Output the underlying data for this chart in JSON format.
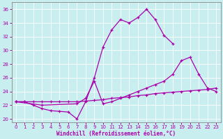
{
  "xlabel": "Windchill (Refroidissement éolien,°C)",
  "bg_color": "#c8eef0",
  "line_color": "#aa00aa",
  "xlim": [
    -0.5,
    23.5
  ],
  "ylim": [
    19.5,
    37.0
  ],
  "xticks": [
    0,
    1,
    2,
    3,
    4,
    5,
    6,
    7,
    8,
    9,
    10,
    11,
    12,
    13,
    14,
    15,
    16,
    17,
    18,
    19,
    20,
    21,
    22,
    23
  ],
  "yticks": [
    20,
    22,
    24,
    26,
    28,
    30,
    32,
    34,
    36
  ],
  "line1_x": [
    0,
    1,
    2,
    3,
    4,
    5,
    6,
    7,
    8,
    9,
    10,
    11,
    12,
    13,
    14,
    15,
    16,
    17,
    18
  ],
  "line1_y": [
    22.5,
    22.5,
    22.0,
    21.5,
    21.2,
    21.1,
    21.0,
    20.0,
    22.5,
    26.0,
    30.5,
    33.0,
    34.5,
    34.0,
    34.8,
    36.0,
    34.5,
    32.2,
    31.0
  ],
  "line2_x": [
    0,
    3,
    7,
    8,
    9,
    10,
    11,
    12,
    13,
    14,
    15,
    16,
    17,
    18,
    19,
    20,
    21,
    22,
    23
  ],
  "line2_y": [
    22.5,
    22.0,
    22.2,
    23.0,
    25.5,
    22.2,
    22.5,
    23.0,
    23.5,
    24.0,
    24.5,
    25.0,
    25.5,
    26.5,
    28.5,
    29.0,
    26.5,
    24.5,
    24.0
  ],
  "line3_x": [
    0,
    1,
    2,
    3,
    4,
    5,
    6,
    7,
    8,
    9,
    10,
    11,
    12,
    13,
    14,
    15,
    16,
    17,
    18,
    19,
    20,
    21,
    22,
    23
  ],
  "line3_y": [
    22.5,
    22.5,
    22.5,
    22.5,
    22.5,
    22.5,
    22.5,
    22.5,
    22.6,
    22.7,
    22.8,
    23.0,
    23.1,
    23.2,
    23.4,
    23.5,
    23.7,
    23.8,
    23.9,
    24.0,
    24.1,
    24.2,
    24.3,
    24.5
  ]
}
